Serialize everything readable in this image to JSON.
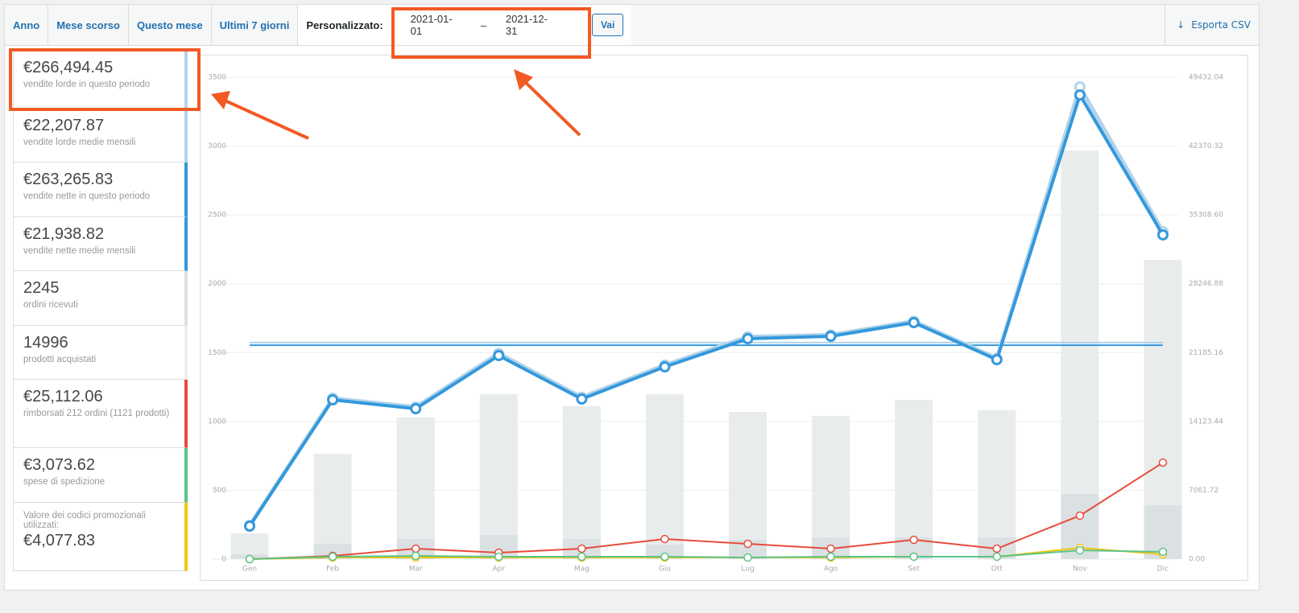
{
  "tabs": [
    "Anno",
    "Mese scorso",
    "Questo mese",
    "Ultimi 7 giorni"
  ],
  "custom_label": "Personalizzato:",
  "date_from": "2021-01-01",
  "date_separator": "–",
  "date_to": "2021-12-31",
  "go_button": "Vai",
  "export": "Esporta CSV",
  "summary": [
    {
      "amount": "€266,494.45",
      "text": "vendite lorde in questo periodo",
      "color": "#b1d4ea"
    },
    {
      "amount": {
        "value": 22207.87,
        "label": "€22,207.87"
      },
      "text": "vendite lorde medie mensili",
      "color": "#b1d4ea"
    },
    {
      "amount": "€263,265.83",
      "text": "vendite nette in questo periodo",
      "color": "#3498db"
    },
    {
      "amount": {
        "value": 21938.82,
        "label": "€21,938.82"
      },
      "text": "vendite nette medie mensili",
      "color": "#3498db"
    },
    {
      "amount": "2245",
      "text": "ordini ricevuti",
      "color": "#dbe1e3"
    },
    {
      "amount": "14996",
      "text": "prodotti acquistati",
      "color": "#ecf0f1"
    },
    {
      "amount": "€25,112.06",
      "text": "rimborsati 212 ordini (1121 prodotti)",
      "color": "#e74c3c"
    },
    {
      "amount": "€3,073.62",
      "text": "spese di spedizione",
      "color": "#5cc488"
    },
    {
      "note": "Valore dei codici promozionali utilizzati:",
      "amount": "€4,077.83",
      "color": "#f1c40f"
    }
  ],
  "chart_data": {
    "type": "combo",
    "categories": [
      "Gen",
      "Feb",
      "Mar",
      "Apr",
      "Mag",
      "Giu",
      "Lug",
      "Ago",
      "Set",
      "Ott",
      "Nov",
      "Dic"
    ],
    "ylim": [
      0,
      3500
    ],
    "yticks": [
      0,
      500,
      1000,
      1500,
      2000,
      2500,
      3000,
      3500
    ],
    "y2lim": [
      0,
      49432.04
    ],
    "y2ticks": [
      {
        "value": 0,
        "label": "0.00"
      },
      7061.72,
      14123.44,
      21185.16,
      28246.88,
      {
        "value": 35308.6,
        "label": "35308.60"
      },
      42370.32,
      49432.04
    ],
    "grid": true,
    "series": [
      {
        "type": "bar",
        "color": "#e9eced",
        "values": [
          187,
          765,
          1028,
          1198,
          1110,
          1198,
          1069,
          1040,
          1157,
          1081,
          2968,
          2174
        ]
      },
      {
        "type": "bar",
        "color": "#dbe1e3",
        "values": [
          35,
          111,
          146,
          175,
          146,
          105,
          140,
          158,
          158,
          158,
          473,
          391
        ]
      },
      {
        "type": "line",
        "axis": "y2",
        "color": "#b1d4ea",
        "width": 5,
        "values": [
          3450,
          16500,
          15600,
          21100,
          16600,
          19900,
          22800,
          23000,
          24400,
          20600,
          48440,
          33590
        ]
      },
      {
        "type": "line",
        "axis": "y2",
        "color": "#3498db",
        "width": 4,
        "values": [
          3383,
          16340,
          15430,
          20880,
          16420,
          19720,
          22610,
          22860,
          24260,
          20460,
          47610,
          33260
        ]
      },
      {
        "type": "line",
        "axis": "y2",
        "color": "#e74c3c",
        "width": 2,
        "values": [
          0,
          330,
          1070,
          660,
          1070,
          2060,
          1570,
          1070,
          1980,
          1070,
          4460,
          9900
        ]
      },
      {
        "type": "line",
        "axis": "y2",
        "color": "#f1c40f",
        "width": 2,
        "values": [
          0,
          160,
          160,
          160,
          160,
          160,
          160,
          160,
          250,
          250,
          1150,
          500
        ]
      },
      {
        "type": "line",
        "axis": "y2",
        "color": "#5cc488",
        "width": 2,
        "values": [
          0,
          250,
          330,
          250,
          250,
          250,
          160,
          250,
          250,
          250,
          900,
          740
        ]
      }
    ]
  }
}
